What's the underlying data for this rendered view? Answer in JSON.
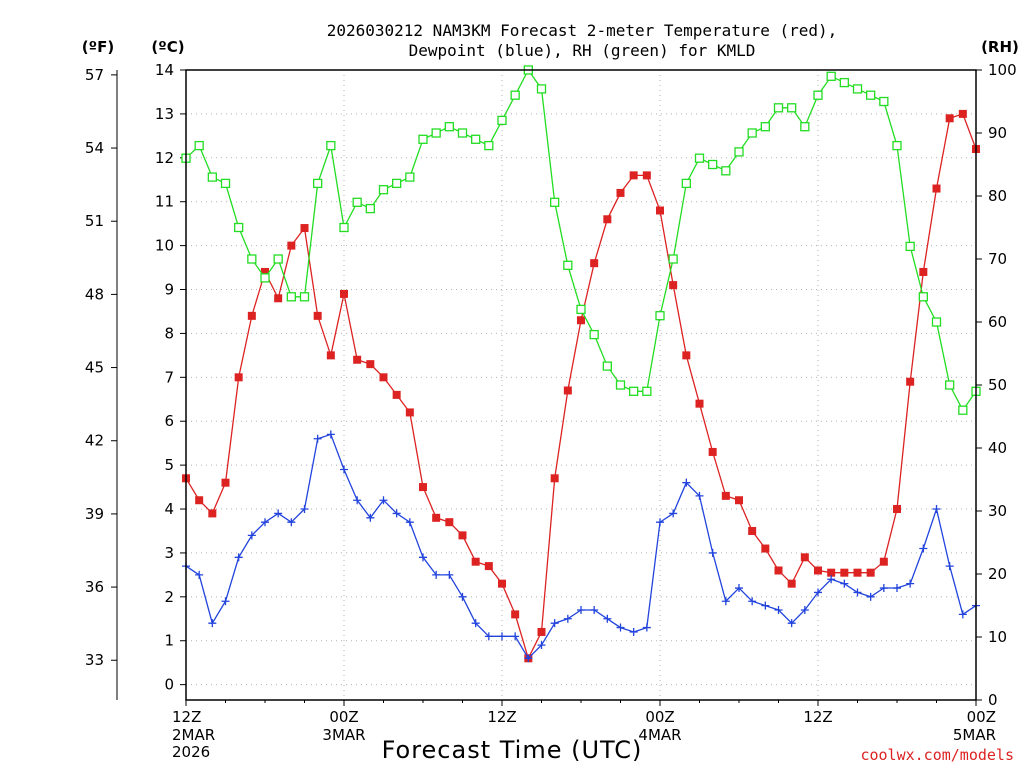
{
  "chart_data": {
    "type": "line",
    "title_line1": "2026030212 NAM3KM Forecast 2-meter Temperature (red),",
    "title_line2": "Dewpoint (blue), RH (green) for KMLD",
    "xlabel": "Forecast Time (UTC)",
    "credit": "coolwx.com/models",
    "units": {
      "fahrenheit": "(ºF)",
      "celsius": "(ºC)",
      "rh": "(RH)"
    },
    "ylim_celsius": [
      -0.35,
      14.0
    ],
    "ylim_rh": [
      0,
      100
    ],
    "xlim_hours": [
      0,
      60
    ],
    "celsius_ticks": [
      "0",
      "1",
      "2",
      "3",
      "4",
      "5",
      "6",
      "7",
      "8",
      "9",
      "10",
      "11",
      "12",
      "13",
      "14"
    ],
    "fahrenheit_ticks": [
      "33",
      "36",
      "39",
      "42",
      "45",
      "48",
      "51",
      "54",
      "57"
    ],
    "rh_ticks": [
      "0",
      "10",
      "20",
      "30",
      "40",
      "50",
      "60",
      "70",
      "80",
      "90",
      "100"
    ],
    "x_ticks": [
      {
        "hour": 0,
        "label": "12Z",
        "date": "2MAR",
        "year": "2026"
      },
      {
        "hour": 12,
        "label": "00Z",
        "date": "3MAR"
      },
      {
        "hour": 24,
        "label": "12Z",
        "date": ""
      },
      {
        "hour": 36,
        "label": "00Z",
        "date": "4MAR"
      },
      {
        "hour": 48,
        "label": "12Z",
        "date": ""
      },
      {
        "hour": 60,
        "label": "00Z",
        "date": "5MAR"
      }
    ],
    "hours": [
      0,
      1,
      2,
      3,
      4,
      5,
      6,
      7,
      8,
      9,
      10,
      11,
      12,
      13,
      14,
      15,
      16,
      17,
      18,
      19,
      20,
      21,
      22,
      23,
      24,
      25,
      26,
      27,
      28,
      29,
      30,
      31,
      32,
      33,
      34,
      35,
      36,
      37,
      38,
      39,
      40,
      41,
      42,
      43,
      44,
      45,
      46,
      47,
      48,
      49,
      50,
      51,
      52,
      53,
      54,
      55,
      56,
      57,
      58,
      59,
      60
    ],
    "series": [
      {
        "name": "Temperature",
        "unit": "C",
        "color": "#dd2222",
        "marker": "filled-square",
        "values": [
          4.7,
          4.2,
          3.9,
          4.6,
          7.0,
          8.4,
          9.4,
          8.8,
          10.0,
          10.4,
          8.4,
          7.5,
          8.9,
          7.4,
          7.3,
          7.0,
          6.6,
          6.2,
          4.5,
          3.8,
          3.7,
          3.4,
          2.8,
          2.7,
          2.3,
          1.6,
          0.6,
          1.2,
          4.7,
          6.7,
          8.3,
          9.6,
          10.6,
          11.2,
          11.6,
          11.6,
          10.8,
          9.1,
          7.5,
          6.4,
          5.3,
          4.3,
          4.2,
          3.5,
          3.1,
          2.6,
          2.3,
          2.9,
          2.6,
          2.55,
          2.55,
          2.55,
          2.55,
          2.8,
          4.0,
          6.9,
          9.4,
          11.3,
          12.9,
          13.0,
          12.2
        ]
      },
      {
        "name": "Dewpoint",
        "unit": "C",
        "color": "#2244dd",
        "marker": "plus",
        "values": [
          2.7,
          2.5,
          1.4,
          1.9,
          2.9,
          3.4,
          3.7,
          3.9,
          3.7,
          4.0,
          5.6,
          5.7,
          4.9,
          4.2,
          3.8,
          4.2,
          3.9,
          3.7,
          2.9,
          2.5,
          2.5,
          2.0,
          1.4,
          1.1,
          1.1,
          1.1,
          0.6,
          0.9,
          1.4,
          1.5,
          1.7,
          1.7,
          1.5,
          1.3,
          1.2,
          1.3,
          3.7,
          3.9,
          4.6,
          4.3,
          3.0,
          1.9,
          2.2,
          1.9,
          1.8,
          1.7,
          1.4,
          1.7,
          2.1,
          2.4,
          2.3,
          2.1,
          2.0,
          2.2,
          2.2,
          2.3,
          3.1,
          4.0,
          2.7,
          1.6,
          1.8
        ]
      },
      {
        "name": "Relative Humidity",
        "unit": "%",
        "color": "#22dd22",
        "marker": "open-square",
        "values": [
          86,
          88,
          83,
          82,
          75,
          70,
          67,
          70,
          64,
          64,
          82,
          88,
          75,
          79,
          78,
          81,
          82,
          83,
          89,
          90,
          91,
          90,
          89,
          88,
          92,
          96,
          100,
          97,
          79,
          69,
          62,
          58,
          53,
          50,
          49,
          49,
          61,
          70,
          82,
          86,
          85,
          84,
          87,
          90,
          91,
          94,
          94,
          91,
          96,
          99,
          98,
          97,
          96,
          95,
          88,
          72,
          64,
          60,
          50,
          46,
          49
        ]
      }
    ]
  }
}
